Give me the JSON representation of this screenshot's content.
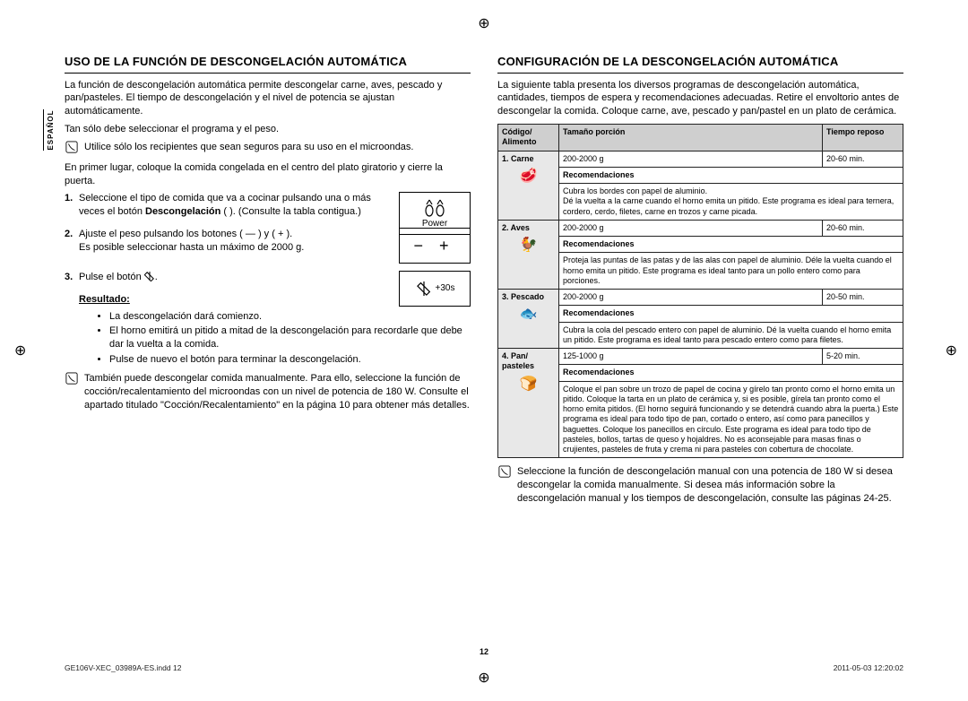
{
  "lang_tab": "ESPAÑOL",
  "page_number": "12",
  "footer_left": "GE106V-XEC_03989A-ES.indd   12",
  "footer_right": "2011-05-03   12:20:02",
  "left": {
    "heading": "USO DE LA FUNCIÓN DE DESCONGELACIÓN AUTOMÁTICA",
    "p1": "La función de descongelación automática permite descongelar carne, aves, pescado y pan/pasteles. El tiempo de descongelación y el nivel de potencia se ajustan automáticamente.",
    "p2": "Tan sólo debe seleccionar el programa y el peso.",
    "note1": "Utilice sólo los recipientes que sean seguros para su uso en el microondas.",
    "p3": "En primer lugar, coloque la comida congelada en el centro del plato giratorio y cierre la puerta.",
    "steps": {
      "s1a": "Seleccione el tipo de comida que va a cocinar pulsando una o más veces el botón ",
      "s1b_bold": "Descongelación",
      "s1c": " ( ). (Consulte la tabla contigua.)",
      "s2a": "Ajuste el peso pulsando los botones ( ",
      "s2b": " ) y ( ",
      "s2c": " ).",
      "s2d": "Es posible seleccionar hasta un máximo de 2000 g.",
      "s3": "Pulse el botón "
    },
    "btn1_label": "Power",
    "btn3_label": "+30s",
    "result_label": "Resultado:",
    "bullets": {
      "b1": "La descongelación dará comienzo.",
      "b2": "El horno emitirá un pitido a mitad de la descongelación para recordarle que debe dar la vuelta a la comida.",
      "b3": "Pulse de nuevo el botón  para terminar la descongelación."
    },
    "note2": "También puede descongelar comida manualmente. Para ello, seleccione la función de cocción/recalentamiento del microondas con un nivel de potencia de 180 W. Consulte el apartado titulado \"Cocción/Recalentamiento\" en la página 10 para obtener más detalles."
  },
  "right": {
    "heading": "CONFIGURACIÓN DE LA DESCONGELACIÓN AUTOMÁTICA",
    "p1": "La siguiente tabla presenta los diversos programas de descongelación automática, cantidades, tiempos de espera y recomendaciones adecuadas. Retire el envoltorio antes de descongelar la comida. Coloque carne, ave, pescado y pan/pastel en un plato de cerámica.",
    "th_code": "Código/ Alimento",
    "th_size": "Tamaño porción",
    "th_time": "Tiempo reposo",
    "rec_label": "Recomendaciones",
    "rows": [
      {
        "code": "1. Carne",
        "icon": "🥩",
        "size": "200-2000 g",
        "time": "20-60 min.",
        "rec": "Cubra los bordes con papel de aluminio.\nDé la vuelta a la carne cuando el horno emita un pitido. Este programa es ideal para ternera, cordero, cerdo, filetes, carne en trozos y carne picada."
      },
      {
        "code": "2. Aves",
        "icon": "🐓",
        "size": "200-2000 g",
        "time": "20-60 min.",
        "rec": "Proteja las puntas de las patas y de las alas con papel de aluminio. Déle la vuelta cuando el horno emita un pitido. Este programa es ideal tanto para un pollo entero como para porciones."
      },
      {
        "code": "3. Pescado",
        "icon": "🐟",
        "size": "200-2000 g",
        "time": "20-50 min.",
        "rec": "Cubra la cola del pescado entero con papel de aluminio. Dé la vuelta cuando el horno emita un pitido. Este programa es ideal tanto para pescado entero como para filetes."
      },
      {
        "code": "4. Pan/ pasteles",
        "icon": "🍞",
        "size": "125-1000 g",
        "time": "5-20 min.",
        "rec": "Coloque el pan sobre un trozo de papel de cocina y gírelo tan pronto como el horno emita un pitido. Coloque la tarta en un plato de cerámica y, si es posible, gírela tan pronto como el horno emita pitidos. (El horno seguirá funcionando y se detendrá cuando abra la puerta.) Este programa es ideal para todo tipo de pan, cortado o entero, así como para panecillos y baguettes. Coloque los panecillos en círculo. Este programa es ideal para todo tipo de pasteles, bollos, tartas de queso y hojaldres. No es aconsejable para masas finas o crujientes, pasteles de fruta y crema ni para pasteles con cobertura de chocolate."
      }
    ],
    "note": "Seleccione la función de descongelación manual con una potencia de 180 W si desea descongelar la comida manualmente. Si desea más información sobre la descongelación manual y los tiempos de descongelación, consulte las páginas 24-25."
  }
}
